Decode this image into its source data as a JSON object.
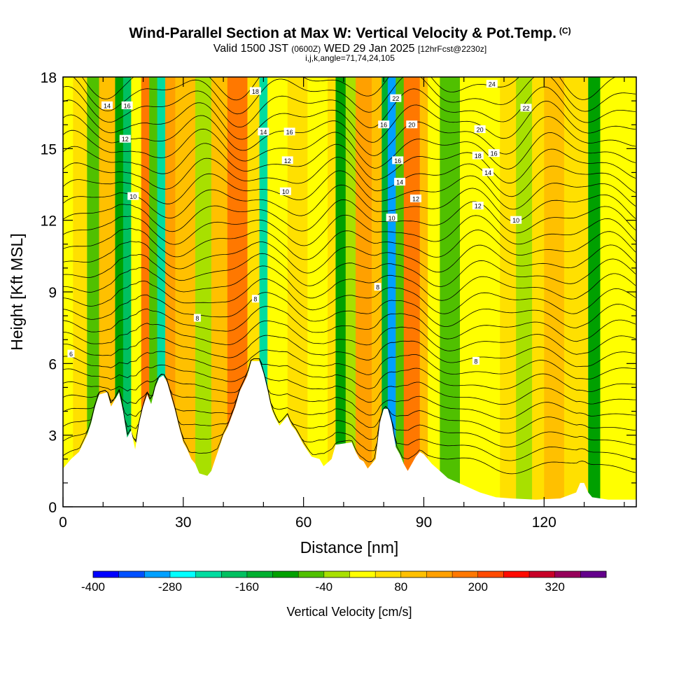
{
  "header": {
    "title": "Wind-Parallel Section at Max W: Vertical Velocity & Pot.Temp.",
    "copyright": "(C)",
    "valid_prefix": "Valid 1500 JST",
    "valid_utc": "(0600Z)",
    "valid_date": "WED 29 Jan 2025",
    "forecast": "[12hrFcst@2230z]",
    "indices": "i,j,k,angle=71,74,24,105"
  },
  "chart_data": {
    "type": "heatmap",
    "xlabel": "Distance [nm]",
    "ylabel": "Height [Kft MSL]",
    "xlim": [
      0,
      143
    ],
    "ylim": [
      0,
      18
    ],
    "x_ticks": [
      0,
      30,
      60,
      90,
      120
    ],
    "y_ticks": [
      0,
      3,
      6,
      9,
      12,
      15,
      18
    ],
    "colorbar": {
      "title": "Vertical Velocity [cm/s]",
      "levels": [
        -400,
        -360,
        -320,
        -280,
        -240,
        -200,
        -160,
        -120,
        -80,
        -40,
        0,
        40,
        80,
        120,
        160,
        200,
        240,
        280,
        320,
        360
      ],
      "tick_labels": [
        "-400",
        "-280",
        "-160",
        "-40",
        "80",
        "200",
        "320"
      ],
      "tick_values": [
        -400,
        -280,
        -160,
        -40,
        80,
        200,
        320
      ],
      "colors": [
        "#0000ff",
        "#0050ff",
        "#00a0ff",
        "#00ffff",
        "#00dca0",
        "#00c060",
        "#00b030",
        "#00a000",
        "#50c000",
        "#a8e000",
        "#ffff00",
        "#ffe000",
        "#ffc000",
        "#ffa000",
        "#ff7800",
        "#ff4a00",
        "#ff0a00",
        "#c80028",
        "#96005a",
        "#64008c"
      ]
    },
    "terrain": [
      [
        0,
        1.6
      ],
      [
        2,
        2.0
      ],
      [
        4,
        2.3
      ],
      [
        6,
        3.0
      ],
      [
        7,
        3.5
      ],
      [
        8,
        4.2
      ],
      [
        9,
        4.7
      ],
      [
        11,
        4.8
      ],
      [
        12,
        4.2
      ],
      [
        13,
        4.5
      ],
      [
        14,
        4.8
      ],
      [
        15,
        4.0
      ],
      [
        16,
        2.9
      ],
      [
        17,
        3.2
      ],
      [
        18,
        2.4
      ],
      [
        19,
        3.5
      ],
      [
        20,
        4.2
      ],
      [
        21,
        4.7
      ],
      [
        22,
        4.3
      ],
      [
        23,
        5.0
      ],
      [
        24,
        5.4
      ],
      [
        25,
        5.5
      ],
      [
        26,
        5.2
      ],
      [
        27,
        4.6
      ],
      [
        28,
        4.0
      ],
      [
        29,
        3.3
      ],
      [
        30,
        2.7
      ],
      [
        31,
        2.4
      ],
      [
        32,
        2.0
      ],
      [
        33,
        1.8
      ],
      [
        34,
        1.4
      ],
      [
        36,
        1.3
      ],
      [
        37,
        1.5
      ],
      [
        38,
        2.0
      ],
      [
        39,
        2.5
      ],
      [
        40,
        3.0
      ],
      [
        41,
        3.3
      ],
      [
        43,
        4.2
      ],
      [
        44,
        4.8
      ],
      [
        46,
        5.5
      ],
      [
        47,
        6.1
      ],
      [
        49,
        6.1
      ],
      [
        50,
        5.6
      ],
      [
        51,
        4.9
      ],
      [
        52,
        4.1
      ],
      [
        53,
        3.7
      ],
      [
        54,
        3.4
      ],
      [
        56,
        3.8
      ],
      [
        57,
        3.4
      ],
      [
        58,
        3.2
      ],
      [
        60,
        2.6
      ],
      [
        62,
        2.1
      ],
      [
        64,
        2.0
      ],
      [
        65,
        1.7
      ],
      [
        67,
        2.0
      ],
      [
        68,
        2.6
      ],
      [
        72,
        2.7
      ],
      [
        73,
        2.3
      ],
      [
        74,
        2.0
      ],
      [
        75,
        1.9
      ],
      [
        76,
        1.6
      ],
      [
        77,
        1.8
      ],
      [
        78,
        2.0
      ],
      [
        79,
        3.5
      ],
      [
        80,
        4.1
      ],
      [
        81,
        4.1
      ],
      [
        82,
        3.5
      ],
      [
        83,
        2.5
      ],
      [
        84,
        2.2
      ],
      [
        85,
        1.8
      ],
      [
        86,
        1.5
      ],
      [
        87,
        1.8
      ],
      [
        88,
        2.1
      ],
      [
        89,
        2.3
      ],
      [
        90,
        2.2
      ],
      [
        91,
        2.0
      ],
      [
        92,
        1.8
      ],
      [
        94,
        1.5
      ],
      [
        96,
        1.2
      ],
      [
        100,
        0.9
      ],
      [
        104,
        0.6
      ],
      [
        108,
        0.4
      ],
      [
        112,
        0.35
      ],
      [
        118,
        0.3
      ],
      [
        124,
        0.35
      ],
      [
        128,
        0.6
      ],
      [
        129,
        1.0
      ],
      [
        130,
        1.0
      ],
      [
        131,
        0.6
      ],
      [
        132,
        0.4
      ],
      [
        136,
        0.3
      ],
      [
        143,
        0.3
      ]
    ],
    "vertical_velocity_columns": [
      {
        "x0": 0,
        "x1": 2.5,
        "w": 30
      },
      {
        "x0": 2.5,
        "x1": 6,
        "w": 50
      },
      {
        "x0": 6,
        "x1": 9,
        "w": -60
      },
      {
        "x0": 9,
        "x1": 13,
        "w": 90
      },
      {
        "x0": 13,
        "x1": 15,
        "w": -90
      },
      {
        "x0": 15,
        "x1": 17,
        "w": -200
      },
      {
        "x0": 17,
        "x1": 19.5,
        "w": 10
      },
      {
        "x0": 19.5,
        "x1": 21.5,
        "w": 170
      },
      {
        "x0": 21.5,
        "x1": 23.5,
        "w": -70
      },
      {
        "x0": 23.5,
        "x1": 25.5,
        "w": -210
      },
      {
        "x0": 25.5,
        "x1": 28,
        "w": 150
      },
      {
        "x0": 28,
        "x1": 33,
        "w": 90
      },
      {
        "x0": 33,
        "x1": 37,
        "w": -10
      },
      {
        "x0": 37,
        "x1": 41,
        "w": 90
      },
      {
        "x0": 41,
        "x1": 46,
        "w": 180
      },
      {
        "x0": 46,
        "x1": 49,
        "w": 70
      },
      {
        "x0": 49,
        "x1": 51,
        "w": -220
      },
      {
        "x0": 51,
        "x1": 56,
        "w": 20
      },
      {
        "x0": 56,
        "x1": 61,
        "w": 50
      },
      {
        "x0": 61,
        "x1": 66,
        "w": 30
      },
      {
        "x0": 66,
        "x1": 68,
        "w": 70
      },
      {
        "x0": 68,
        "x1": 70.5,
        "w": -110
      },
      {
        "x0": 70.5,
        "x1": 73,
        "w": -40
      },
      {
        "x0": 73,
        "x1": 77,
        "w": 150
      },
      {
        "x0": 77,
        "x1": 79.5,
        "w": 110
      },
      {
        "x0": 79.5,
        "x1": 81,
        "w": -140
      },
      {
        "x0": 81,
        "x1": 83,
        "w": -300
      },
      {
        "x0": 83,
        "x1": 85,
        "w": -60
      },
      {
        "x0": 85,
        "x1": 89,
        "w": 170
      },
      {
        "x0": 89,
        "x1": 91,
        "w": 110
      },
      {
        "x0": 91,
        "x1": 94,
        "w": 30
      },
      {
        "x0": 94,
        "x1": 99,
        "w": -80
      },
      {
        "x0": 99,
        "x1": 104,
        "w": 0
      },
      {
        "x0": 104,
        "x1": 109,
        "w": 30
      },
      {
        "x0": 109,
        "x1": 113,
        "w": 60
      },
      {
        "x0": 113,
        "x1": 117,
        "w": -30
      },
      {
        "x0": 117,
        "x1": 120,
        "w": 60
      },
      {
        "x0": 120,
        "x1": 125,
        "w": 110
      },
      {
        "x0": 125,
        "x1": 131,
        "w": 70
      },
      {
        "x0": 131,
        "x1": 134,
        "w": -110
      },
      {
        "x0": 134,
        "x1": 139,
        "w": 20
      },
      {
        "x0": 139,
        "x1": 143,
        "w": 10
      }
    ],
    "theta_contour_labels": [
      {
        "text": "6",
        "x": 2,
        "y": 6.4
      },
      {
        "text": "8",
        "x": 33.5,
        "y": 7.9
      },
      {
        "text": "8",
        "x": 48,
        "y": 8.7
      },
      {
        "text": "8",
        "x": 78.5,
        "y": 9.2
      },
      {
        "text": "8",
        "x": 103,
        "y": 6.1
      },
      {
        "text": "10",
        "x": 17.5,
        "y": 13.0
      },
      {
        "text": "10",
        "x": 55.5,
        "y": 13.2
      },
      {
        "text": "10",
        "x": 82,
        "y": 12.1
      },
      {
        "text": "10",
        "x": 113,
        "y": 12.0
      },
      {
        "text": "12",
        "x": 15.5,
        "y": 15.4
      },
      {
        "text": "12",
        "x": 56,
        "y": 14.5
      },
      {
        "text": "12",
        "x": 88,
        "y": 12.9
      },
      {
        "text": "12",
        "x": 103.5,
        "y": 12.6
      },
      {
        "text": "14",
        "x": 11,
        "y": 16.8
      },
      {
        "text": "14",
        "x": 50,
        "y": 15.7
      },
      {
        "text": "14",
        "x": 84,
        "y": 13.6
      },
      {
        "text": "14",
        "x": 106,
        "y": 14.0
      },
      {
        "text": "16",
        "x": 16,
        "y": 16.8
      },
      {
        "text": "16",
        "x": 56.5,
        "y": 15.7
      },
      {
        "text": "16",
        "x": 80,
        "y": 16.0
      },
      {
        "text": "16",
        "x": 83.5,
        "y": 14.5
      },
      {
        "text": "16",
        "x": 107.5,
        "y": 14.8
      },
      {
        "text": "18",
        "x": 48,
        "y": 17.4
      },
      {
        "text": "18",
        "x": 103.5,
        "y": 14.7
      },
      {
        "text": "20",
        "x": 87,
        "y": 16.0
      },
      {
        "text": "20",
        "x": 104,
        "y": 15.8
      },
      {
        "text": "22",
        "x": 83,
        "y": 17.1
      },
      {
        "text": "22",
        "x": 115.5,
        "y": 16.7
      },
      {
        "text": "24",
        "x": 107,
        "y": 17.7
      }
    ]
  }
}
